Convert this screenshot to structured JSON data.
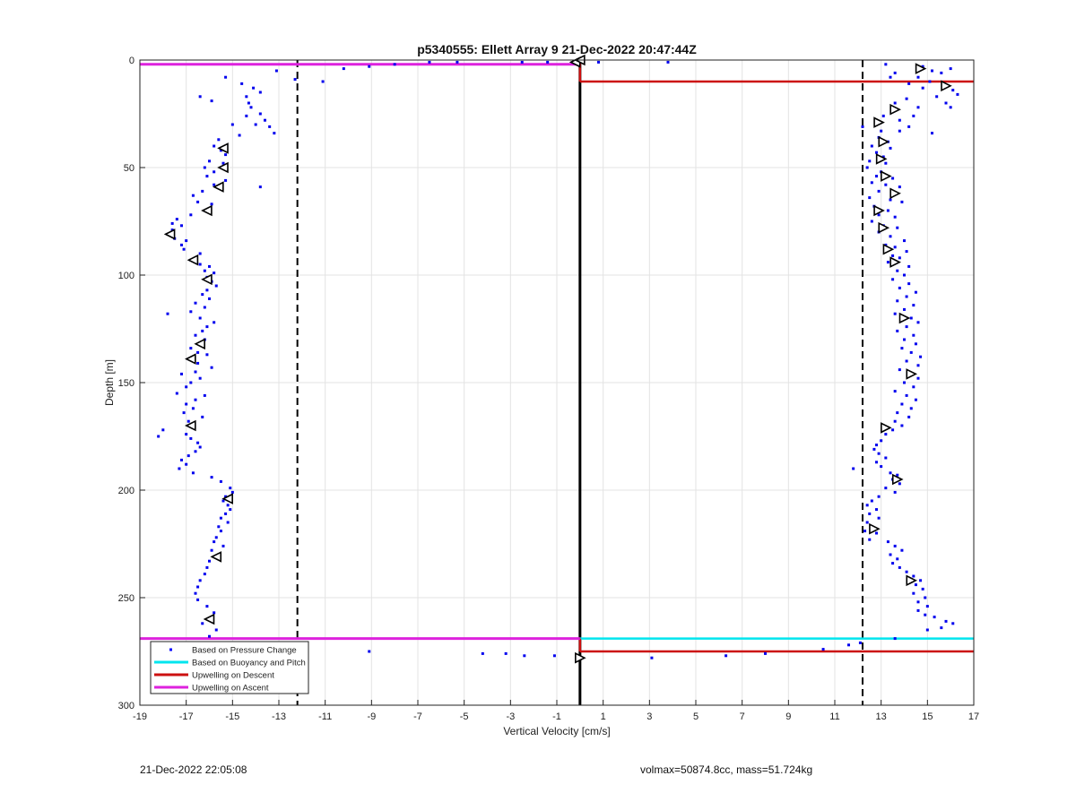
{
  "chart_data": {
    "type": "scatter",
    "title": "p5340555: Ellett Array 9 21-Dec-2022 20:47:44Z",
    "xlabel": "Vertical Velocity [cm/s]",
    "ylabel": "Depth [m]",
    "xlim": [
      -19,
      17
    ],
    "ylim": [
      0,
      300
    ],
    "y_reversed": true,
    "grid": true,
    "xticks": [
      -19,
      -17,
      -15,
      -13,
      -11,
      -9,
      -7,
      -5,
      -3,
      -1,
      1,
      3,
      5,
      7,
      9,
      11,
      13,
      15,
      17
    ],
    "yticks": [
      0,
      50,
      100,
      150,
      200,
      250,
      300
    ],
    "legend_position": "bottom-left",
    "legend": [
      {
        "label": "Based on Pressure Change",
        "color": "#0000ff",
        "style": "dot"
      },
      {
        "label": "Based on Buoyancy and Pitch",
        "color": "#00e5ee",
        "style": "line"
      },
      {
        "label": "Upwelling on Descent",
        "color": "#cc1010",
        "style": "line"
      },
      {
        "label": "Upwelling on Ascent",
        "color": "#dd22dd",
        "style": "line"
      }
    ],
    "reference_lines": {
      "dashed_vertical_x": [
        -12.2,
        12.2
      ],
      "solid_vertical_x": 0
    },
    "upwelling_descent": {
      "color": "#cc1010",
      "segments": [
        {
          "x": [
            0,
            0
          ],
          "y": [
            1,
            10
          ]
        },
        {
          "x": [
            0,
            17
          ],
          "y": [
            10,
            10
          ]
        },
        {
          "x": [
            0,
            0
          ],
          "y": [
            269,
            275
          ]
        },
        {
          "x": [
            0,
            17
          ],
          "y": [
            275,
            275
          ]
        }
      ]
    },
    "upwelling_ascent": {
      "color": "#dd22dd",
      "segments": [
        {
          "x": [
            -19,
            0
          ],
          "y": [
            2,
            2
          ]
        },
        {
          "x": [
            -19,
            0
          ],
          "y": [
            269,
            269
          ]
        }
      ]
    },
    "buoyancy_pitch": {
      "color": "#00e5ee",
      "segments": [
        {
          "x": [
            0,
            17
          ],
          "y": [
            269,
            269
          ]
        }
      ]
    },
    "pressure_change_descent": [
      [
        -13.1,
        5
      ],
      [
        -12.3,
        9
      ],
      [
        -11.1,
        10
      ],
      [
        -10.2,
        4
      ],
      [
        -9.1,
        3
      ],
      [
        -8.0,
        2
      ],
      [
        -6.5,
        1
      ],
      [
        -5.3,
        1
      ],
      [
        -2.5,
        1
      ],
      [
        -1.4,
        1
      ],
      [
        -15.3,
        8
      ],
      [
        -14.6,
        11
      ],
      [
        -14.1,
        13
      ],
      [
        -13.8,
        15
      ],
      [
        -14.4,
        17
      ],
      [
        -16.4,
        17
      ],
      [
        -15.9,
        19
      ],
      [
        -14.3,
        20
      ],
      [
        -14.2,
        22
      ],
      [
        -13.8,
        25
      ],
      [
        -14.4,
        26
      ],
      [
        -13.6,
        28
      ],
      [
        -15.0,
        30
      ],
      [
        -14.0,
        30
      ],
      [
        -13.4,
        31
      ],
      [
        -13.2,
        34
      ],
      [
        -14.7,
        35
      ],
      [
        -15.6,
        37
      ],
      [
        -15.8,
        40
      ],
      [
        -15.5,
        42
      ],
      [
        -15.3,
        44
      ],
      [
        -16.0,
        47
      ],
      [
        -15.4,
        48
      ],
      [
        -16.2,
        50
      ],
      [
        -15.8,
        52
      ],
      [
        -16.1,
        54
      ],
      [
        -15.3,
        56
      ],
      [
        -15.8,
        58
      ],
      [
        -13.8,
        59
      ],
      [
        -16.3,
        61
      ],
      [
        -16.7,
        63
      ],
      [
        -16.5,
        66
      ],
      [
        -15.9,
        67
      ],
      [
        -16.2,
        70
      ],
      [
        -16.8,
        72
      ],
      [
        -17.4,
        74
      ],
      [
        -17.6,
        76
      ],
      [
        -17.2,
        77
      ],
      [
        -17.6,
        79
      ],
      [
        -17.8,
        81
      ],
      [
        -17.5,
        83
      ],
      [
        -17.0,
        84
      ],
      [
        -17.2,
        86
      ],
      [
        -17.1,
        88
      ],
      [
        -16.4,
        90
      ],
      [
        -16.6,
        92
      ],
      [
        -16.8,
        93
      ],
      [
        -16.4,
        95
      ],
      [
        -16.0,
        96
      ],
      [
        -16.2,
        98
      ],
      [
        -15.8,
        99
      ],
      [
        -16.1,
        101
      ],
      [
        -15.9,
        103
      ],
      [
        -15.7,
        105
      ],
      [
        -16.1,
        107
      ],
      [
        -16.3,
        109
      ],
      [
        -16.0,
        111
      ],
      [
        -16.6,
        113
      ],
      [
        -16.2,
        115
      ],
      [
        -16.8,
        117
      ],
      [
        -17.8,
        118
      ],
      [
        -16.4,
        120
      ],
      [
        -15.8,
        122
      ],
      [
        -16.1,
        124
      ],
      [
        -16.3,
        126
      ],
      [
        -16.6,
        128
      ],
      [
        -16.2,
        130
      ],
      [
        -16.4,
        132
      ],
      [
        -16.8,
        134
      ],
      [
        -16.5,
        136
      ],
      [
        -16.1,
        137
      ],
      [
        -16.9,
        139
      ],
      [
        -16.5,
        141
      ],
      [
        -15.9,
        143
      ],
      [
        -16.6,
        145
      ],
      [
        -17.2,
        146
      ],
      [
        -16.4,
        148
      ],
      [
        -16.8,
        150
      ],
      [
        -17.0,
        152
      ],
      [
        -17.4,
        155
      ],
      [
        -16.2,
        156
      ],
      [
        -16.6,
        158
      ],
      [
        -17.0,
        160
      ],
      [
        -16.7,
        162
      ],
      [
        -17.1,
        164
      ],
      [
        -16.3,
        166
      ],
      [
        -16.9,
        168
      ],
      [
        -18.0,
        172
      ],
      [
        -18.2,
        175
      ],
      [
        -17.0,
        174
      ],
      [
        -16.8,
        176
      ],
      [
        -16.5,
        178
      ],
      [
        -16.4,
        180
      ],
      [
        -16.6,
        182
      ],
      [
        -16.9,
        184
      ],
      [
        -17.2,
        186
      ],
      [
        -17.0,
        188
      ],
      [
        -17.3,
        190
      ],
      [
        -16.7,
        192
      ],
      [
        -15.9,
        194
      ],
      [
        -15.5,
        196
      ],
      [
        -15.1,
        199
      ],
      [
        -15.0,
        201
      ],
      [
        -15.3,
        203
      ],
      [
        -15.4,
        205
      ],
      [
        -15.2,
        207
      ],
      [
        -15.1,
        209
      ],
      [
        -15.3,
        211
      ],
      [
        -15.5,
        213
      ],
      [
        -15.2,
        215
      ],
      [
        -15.6,
        217
      ],
      [
        -15.5,
        219
      ],
      [
        -15.7,
        222
      ],
      [
        -15.8,
        224
      ],
      [
        -15.4,
        226
      ],
      [
        -15.9,
        228
      ],
      [
        -15.6,
        230
      ],
      [
        -16.0,
        233
      ],
      [
        -16.1,
        236
      ],
      [
        -16.2,
        239
      ],
      [
        -16.4,
        242
      ],
      [
        -16.5,
        245
      ],
      [
        -16.6,
        248
      ],
      [
        -16.5,
        251
      ],
      [
        -16.1,
        254
      ],
      [
        -15.8,
        257
      ],
      [
        -15.9,
        259
      ],
      [
        -16.3,
        262
      ],
      [
        -15.7,
        265
      ],
      [
        -16.0,
        268
      ],
      [
        -16.2,
        271
      ],
      [
        -16.1,
        273
      ],
      [
        -15.4,
        271
      ],
      [
        -9.1,
        275
      ],
      [
        -4.2,
        276
      ],
      [
        -3.2,
        276
      ],
      [
        -2.4,
        277
      ],
      [
        -1.1,
        277
      ]
    ],
    "pressure_change_ascent": [
      [
        0.8,
        1
      ],
      [
        3.8,
        1
      ],
      [
        13.2,
        2
      ],
      [
        14.8,
        3
      ],
      [
        15.2,
        5
      ],
      [
        16.0,
        4
      ],
      [
        15.6,
        6
      ],
      [
        13.6,
        6
      ],
      [
        14.6,
        8
      ],
      [
        13.4,
        8
      ],
      [
        15.1,
        10
      ],
      [
        14.2,
        11
      ],
      [
        14.8,
        13
      ],
      [
        16.1,
        14
      ],
      [
        16.3,
        16
      ],
      [
        15.4,
        17
      ],
      [
        14.1,
        18
      ],
      [
        13.6,
        20
      ],
      [
        15.8,
        20
      ],
      [
        16.0,
        22
      ],
      [
        14.6,
        22
      ],
      [
        13.5,
        24
      ],
      [
        13.1,
        26
      ],
      [
        14.4,
        26
      ],
      [
        12.8,
        29
      ],
      [
        13.8,
        28
      ],
      [
        14.2,
        31
      ],
      [
        12.2,
        31
      ],
      [
        13.0,
        33
      ],
      [
        13.8,
        33
      ],
      [
        15.2,
        34
      ],
      [
        12.9,
        36
      ],
      [
        13.3,
        38
      ],
      [
        12.6,
        40
      ],
      [
        13.4,
        41
      ],
      [
        12.8,
        43
      ],
      [
        13.1,
        45
      ],
      [
        12.5,
        47
      ],
      [
        13.2,
        48
      ],
      [
        12.4,
        50
      ],
      [
        13.0,
        52
      ],
      [
        12.8,
        54
      ],
      [
        13.5,
        55
      ],
      [
        12.6,
        57
      ],
      [
        13.2,
        58
      ],
      [
        13.8,
        59
      ],
      [
        12.9,
        61
      ],
      [
        13.6,
        62
      ],
      [
        12.5,
        64
      ],
      [
        13.4,
        65
      ],
      [
        13.9,
        66
      ],
      [
        12.7,
        68
      ],
      [
        13.3,
        70
      ],
      [
        12.9,
        72
      ],
      [
        13.6,
        73
      ],
      [
        12.6,
        75
      ],
      [
        13.1,
        77
      ],
      [
        13.7,
        78
      ],
      [
        12.9,
        80
      ],
      [
        13.4,
        82
      ],
      [
        14.0,
        84
      ],
      [
        13.2,
        86
      ],
      [
        13.6,
        87
      ],
      [
        14.1,
        89
      ],
      [
        13.5,
        91
      ],
      [
        13.8,
        92
      ],
      [
        13.3,
        94
      ],
      [
        14.2,
        96
      ],
      [
        13.7,
        98
      ],
      [
        14.0,
        100
      ],
      [
        13.5,
        102
      ],
      [
        14.2,
        104
      ],
      [
        13.8,
        106
      ],
      [
        14.5,
        108
      ],
      [
        14.1,
        110
      ],
      [
        13.7,
        112
      ],
      [
        14.4,
        114
      ],
      [
        14.0,
        116
      ],
      [
        13.6,
        118
      ],
      [
        14.3,
        120
      ],
      [
        14.6,
        122
      ],
      [
        14.1,
        124
      ],
      [
        13.7,
        126
      ],
      [
        14.4,
        128
      ],
      [
        14.0,
        130
      ],
      [
        14.5,
        132
      ],
      [
        13.9,
        134
      ],
      [
        14.3,
        136
      ],
      [
        14.7,
        138
      ],
      [
        14.1,
        140
      ],
      [
        14.6,
        142
      ],
      [
        13.8,
        144
      ],
      [
        14.2,
        146
      ],
      [
        14.6,
        148
      ],
      [
        14.0,
        150
      ],
      [
        14.4,
        152
      ],
      [
        13.6,
        154
      ],
      [
        14.1,
        156
      ],
      [
        14.5,
        158
      ],
      [
        13.9,
        160
      ],
      [
        14.3,
        162
      ],
      [
        13.7,
        164
      ],
      [
        14.2,
        166
      ],
      [
        13.6,
        168
      ],
      [
        13.9,
        170
      ],
      [
        13.5,
        172
      ],
      [
        13.2,
        174
      ],
      [
        13.0,
        177
      ],
      [
        12.8,
        179
      ],
      [
        12.7,
        181
      ],
      [
        12.9,
        183
      ],
      [
        13.2,
        185
      ],
      [
        12.8,
        187
      ],
      [
        13.0,
        189
      ],
      [
        11.8,
        190
      ],
      [
        13.4,
        192
      ],
      [
        13.7,
        193
      ],
      [
        13.5,
        195
      ],
      [
        13.8,
        197
      ],
      [
        13.2,
        199
      ],
      [
        13.6,
        201
      ],
      [
        12.9,
        203
      ],
      [
        12.6,
        205
      ],
      [
        12.4,
        207
      ],
      [
        12.8,
        209
      ],
      [
        12.5,
        211
      ],
      [
        12.9,
        213
      ],
      [
        12.4,
        215
      ],
      [
        12.6,
        217
      ],
      [
        12.3,
        219
      ],
      [
        12.8,
        220
      ],
      [
        12.5,
        223
      ],
      [
        13.3,
        224
      ],
      [
        13.6,
        226
      ],
      [
        13.9,
        228
      ],
      [
        13.4,
        230
      ],
      [
        13.7,
        232
      ],
      [
        13.5,
        234
      ],
      [
        13.8,
        236
      ],
      [
        14.1,
        238
      ],
      [
        14.4,
        240
      ],
      [
        14.7,
        242
      ],
      [
        14.5,
        244
      ],
      [
        14.8,
        246
      ],
      [
        14.4,
        248
      ],
      [
        14.9,
        250
      ],
      [
        14.6,
        252
      ],
      [
        15.0,
        254
      ],
      [
        14.6,
        256
      ],
      [
        14.9,
        258
      ],
      [
        15.3,
        259
      ],
      [
        15.8,
        261
      ],
      [
        16.1,
        262
      ],
      [
        15.6,
        264
      ],
      [
        15.0,
        265
      ],
      [
        13.6,
        269
      ],
      [
        12.1,
        271
      ],
      [
        11.6,
        272
      ],
      [
        10.5,
        274
      ],
      [
        8.0,
        276
      ],
      [
        6.3,
        277
      ],
      [
        3.1,
        278
      ]
    ],
    "buoyancy_descent_markers": [
      [
        -0.2,
        1
      ],
      [
        0.0,
        0
      ],
      [
        -15.4,
        41
      ],
      [
        -15.4,
        50
      ],
      [
        -15.6,
        59
      ],
      [
        -16.1,
        70
      ],
      [
        -17.7,
        81
      ],
      [
        -16.7,
        93
      ],
      [
        -16.1,
        102
      ],
      [
        -16.4,
        132
      ],
      [
        -16.8,
        139
      ],
      [
        -16.8,
        170
      ],
      [
        -15.2,
        204
      ],
      [
        -15.7,
        231
      ],
      [
        -16.0,
        260
      ],
      [
        -15.9,
        273
      ]
    ],
    "buoyancy_ascent_markers": [
      [
        14.7,
        4
      ],
      [
        15.8,
        12
      ],
      [
        13.6,
        23
      ],
      [
        12.9,
        29
      ],
      [
        13.1,
        38
      ],
      [
        13.0,
        46
      ],
      [
        13.2,
        54
      ],
      [
        13.6,
        62
      ],
      [
        12.9,
        70
      ],
      [
        13.1,
        78
      ],
      [
        13.3,
        88
      ],
      [
        13.6,
        94
      ],
      [
        14.0,
        120
      ],
      [
        14.3,
        146
      ],
      [
        13.2,
        171
      ],
      [
        13.7,
        195
      ],
      [
        12.7,
        218
      ],
      [
        14.3,
        242
      ],
      [
        0.0,
        278
      ]
    ]
  },
  "footer": {
    "timestamp": "21-Dec-2022 22:05:08",
    "info": "volmax=50874.8cc, mass=51.724kg"
  }
}
